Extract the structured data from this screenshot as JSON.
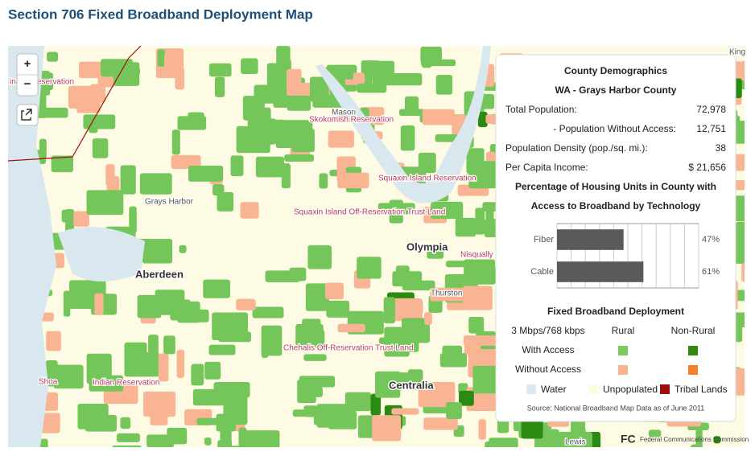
{
  "header": {
    "title": "Section 706 Fixed Broadband Deployment Map"
  },
  "map": {
    "zoom_in": "+",
    "zoom_out": "−",
    "labels": [
      "inault Reservation",
      "Mason",
      "Skokomish Reservation",
      "Grays Harbor",
      "Squaxin Island Reservation",
      "Squaxin Island Off-Reservation Trust Land",
      "Olympia",
      "Nisqually R",
      "Aberdeen",
      "Thurston",
      "Chehalis Off-Reservation Trust Land",
      "Shoa",
      "Indian Reservation",
      "Centralia",
      "Lewis",
      "King"
    ],
    "attribution": "Federal Communications Commission",
    "logo": "FC"
  },
  "panel": {
    "title": "County Demographics",
    "county": "WA - Grays Harbor County",
    "stats": [
      [
        "Total Population:",
        "72,978"
      ],
      [
        "- Population Without Access:",
        "12,751"
      ],
      [
        "Population Density (pop./sq. mi.):",
        "38"
      ],
      [
        "Per Capita Income:",
        "$ 21,656"
      ]
    ],
    "chart_title": [
      "Percentage of Housing Units in County with",
      "Access to Broadband by Technology"
    ],
    "legend": {
      "title": "Fixed Broadband Deployment",
      "speed": "3 Mbps/768 kbps",
      "columns": [
        "Rural",
        "Non-Rural"
      ],
      "rows": [
        "With Access",
        "Without Access"
      ],
      "extra": [
        "Water",
        "Unpopulated",
        "Tribal Lands"
      ]
    },
    "source": "Source: National Broadband Map Data as of June 2011"
  },
  "chart_data": {
    "type": "bar",
    "orientation": "horizontal",
    "categories": [
      "Fiber",
      "Cable"
    ],
    "values": [
      47,
      61
    ],
    "value_labels": [
      "47%",
      "61%"
    ],
    "color": "#5a5a5a",
    "xlim": [
      0,
      100
    ],
    "xticks": [
      0,
      10,
      20,
      30,
      40,
      50,
      60,
      70,
      80,
      90,
      100
    ],
    "grid": true
  }
}
